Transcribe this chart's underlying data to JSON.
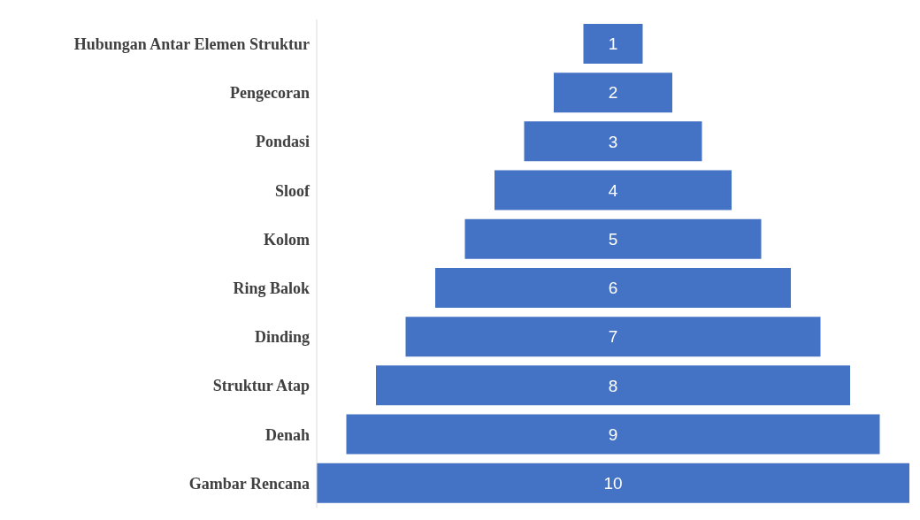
{
  "chart_data": {
    "type": "other",
    "categories": [
      "Hubungan Antar Elemen Struktur",
      "Pengecoran",
      "Pondasi",
      "Sloof",
      "Kolom",
      "Ring Balok",
      "Dinding",
      "Struktur Atap",
      "Denah",
      "Gambar Rencana"
    ],
    "values": [
      1,
      2,
      3,
      4,
      5,
      6,
      7,
      8,
      9,
      10
    ],
    "color": "#4472c4",
    "data_labels": true
  }
}
